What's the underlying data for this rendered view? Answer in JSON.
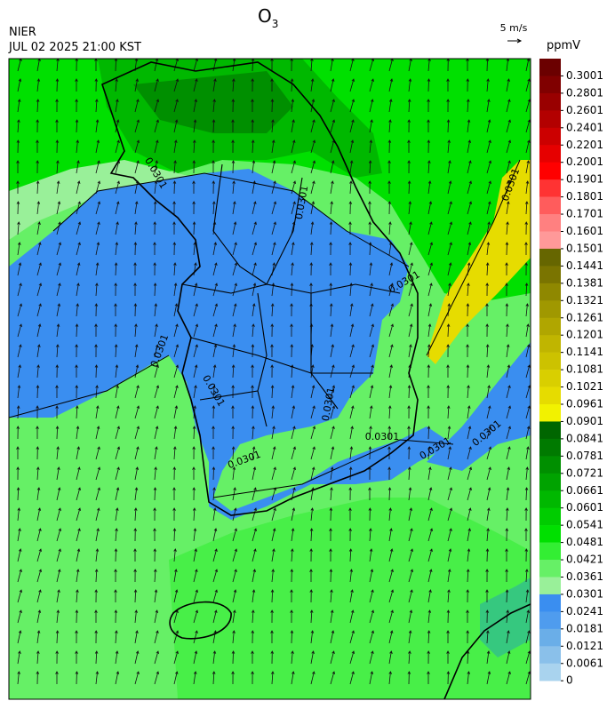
{
  "header": {
    "agency": "NIER",
    "datetime": "JUL 02 2025 21:00 KST",
    "title": {
      "text": "O",
      "subscript": "3"
    },
    "vector_scale": "5 m/s"
  },
  "colorbar": {
    "unit": "ppmV",
    "ticks": [
      0.3001,
      0.2801,
      0.2601,
      0.2401,
      0.2201,
      0.2001,
      0.1901,
      0.1801,
      0.1701,
      0.1601,
      0.1501,
      0.1441,
      0.1381,
      0.1321,
      0.1261,
      0.1201,
      0.1141,
      0.1081,
      0.1021,
      0.0961,
      0.0901,
      0.0841,
      0.0781,
      0.0721,
      0.0661,
      0.0601,
      0.0541,
      0.0481,
      0.0421,
      0.0361,
      0.0301,
      0.0241,
      0.0181,
      0.0121,
      0.0061,
      0
    ],
    "colors": [
      "#6b0000",
      "#800000",
      "#990000",
      "#b30000",
      "#cc0000",
      "#e60000",
      "#ff0000",
      "#ff3333",
      "#ff5c5c",
      "#ff8080",
      "#ff9999",
      "#666600",
      "#7a7400",
      "#8f8800",
      "#a09800",
      "#b0a600",
      "#c0b500",
      "#ccc200",
      "#d9cf00",
      "#e6dc00",
      "#f2f200",
      "#006600",
      "#007a00",
      "#008f00",
      "#00a300",
      "#00b800",
      "#00cc00",
      "#00e000",
      "#33ee33",
      "#66f066",
      "#99f099",
      "#3a8ef0",
      "#4f9cee",
      "#6aaee8",
      "#8ac0ea",
      "#a9d3ee"
    ]
  },
  "contour_labels": [
    "0.0301",
    "0.0301",
    "0.0301",
    "0.0301",
    "0.0301",
    "0.0301",
    "0.0301",
    "0.0301",
    "0.0301",
    "0.0301",
    "0.0301"
  ]
}
